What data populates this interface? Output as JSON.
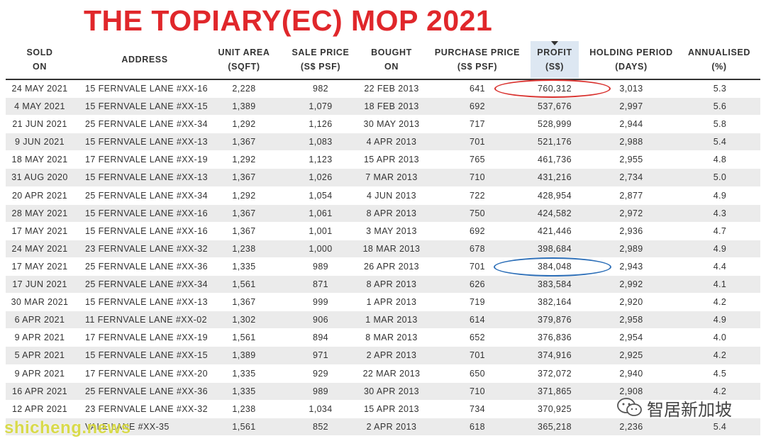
{
  "title": "THE TOPIARY(EC) MOP 2021",
  "columns": [
    {
      "label": "SOLD\nON"
    },
    {
      "label": "ADDRESS"
    },
    {
      "label": "UNIT AREA\n(SQFT)"
    },
    {
      "label": "SALE PRICE\n(S$ PSF)"
    },
    {
      "label": "BOUGHT\nON"
    },
    {
      "label": "PURCHASE PRICE\n(S$ PSF)"
    },
    {
      "label": "PROFIT\n(S$)"
    },
    {
      "label": "HOLDING PERIOD\n(DAYS)"
    },
    {
      "label": "ANNUALISED\n(%)"
    }
  ],
  "sorted_column": "PROFIT",
  "rows": [
    [
      "24 MAY 2021",
      "15 FERNVALE LANE #XX-16",
      "2,228",
      "982",
      "22 FEB 2013",
      "641",
      "760,312",
      "3,013",
      "5.3"
    ],
    [
      "4 MAY 2021",
      "15 FERNVALE LANE #XX-15",
      "1,389",
      "1,079",
      "18 FEB 2013",
      "692",
      "537,676",
      "2,997",
      "5.6"
    ],
    [
      "21 JUN 2021",
      "25 FERNVALE LANE #XX-34",
      "1,292",
      "1,126",
      "30 MAY 2013",
      "717",
      "528,999",
      "2,944",
      "5.8"
    ],
    [
      "9 JUN 2021",
      "15 FERNVALE LANE #XX-13",
      "1,367",
      "1,083",
      "4 APR 2013",
      "701",
      "521,176",
      "2,988",
      "5.4"
    ],
    [
      "18 MAY 2021",
      "17 FERNVALE LANE #XX-19",
      "1,292",
      "1,123",
      "15 APR 2013",
      "765",
      "461,736",
      "2,955",
      "4.8"
    ],
    [
      "31 AUG 2020",
      "15 FERNVALE LANE #XX-13",
      "1,367",
      "1,026",
      "7 MAR 2013",
      "710",
      "431,216",
      "2,734",
      "5.0"
    ],
    [
      "20 APR 2021",
      "25 FERNVALE LANE #XX-34",
      "1,292",
      "1,054",
      "4 JUN 2013",
      "722",
      "428,954",
      "2,877",
      "4.9"
    ],
    [
      "28 MAY 2021",
      "15 FERNVALE LANE #XX-16",
      "1,367",
      "1,061",
      "8 APR 2013",
      "750",
      "424,582",
      "2,972",
      "4.3"
    ],
    [
      "17 MAY 2021",
      "15 FERNVALE LANE #XX-16",
      "1,367",
      "1,001",
      "3 MAY 2013",
      "692",
      "421,446",
      "2,936",
      "4.7"
    ],
    [
      "24 MAY 2021",
      "23 FERNVALE LANE #XX-32",
      "1,238",
      "1,000",
      "18 MAR 2013",
      "678",
      "398,684",
      "2,989",
      "4.9"
    ],
    [
      "17 MAY 2021",
      "25 FERNVALE LANE #XX-36",
      "1,335",
      "989",
      "26 APR 2013",
      "701",
      "384,048",
      "2,943",
      "4.4"
    ],
    [
      "17 JUN 2021",
      "25 FERNVALE LANE #XX-34",
      "1,561",
      "871",
      "8 APR 2013",
      "626",
      "383,584",
      "2,992",
      "4.1"
    ],
    [
      "30 MAR 2021",
      "15 FERNVALE LANE #XX-13",
      "1,367",
      "999",
      "1 APR 2013",
      "719",
      "382,164",
      "2,920",
      "4.2"
    ],
    [
      "6 APR 2021",
      "11 FERNVALE LANE #XX-02",
      "1,302",
      "906",
      "1 MAR 2013",
      "614",
      "379,876",
      "2,958",
      "4.9"
    ],
    [
      "9 APR 2021",
      "17 FERNVALE LANE #XX-19",
      "1,561",
      "894",
      "8 MAR 2013",
      "652",
      "376,836",
      "2,954",
      "4.0"
    ],
    [
      "5 APR 2021",
      "15 FERNVALE LANE #XX-15",
      "1,389",
      "971",
      "2 APR 2013",
      "701",
      "374,916",
      "2,925",
      "4.2"
    ],
    [
      "9 APR 2021",
      "17 FERNVALE LANE #XX-20",
      "1,335",
      "929",
      "22 MAR 2013",
      "650",
      "372,072",
      "2,940",
      "4.5"
    ],
    [
      "16 APR 2021",
      "25 FERNVALE LANE #XX-36",
      "1,335",
      "989",
      "30 APR 2013",
      "710",
      "371,865",
      "2,908",
      "4.2"
    ],
    [
      "12 APR 2021",
      "23 FERNVALE LANE #XX-32",
      "1,238",
      "1,034",
      "15 APR 2013",
      "734",
      "370,925",
      "",
      ""
    ],
    [
      "",
      "VALE LANE #XX-35",
      "1,561",
      "852",
      "2 APR 2013",
      "618",
      "365,218",
      "2,236",
      "5.4"
    ]
  ],
  "highlights": {
    "red_circled_profit": "760,312",
    "blue_circled_profit": "384,048",
    "red_color": "#d9312e",
    "blue_color": "#2d6fb8"
  },
  "watermarks": {
    "left": "shicheng.news",
    "right": "智居新加坡",
    "right_icon": "wechat-icon"
  },
  "colors": {
    "title": "#e0272b",
    "row_stripe": "#ebebeb",
    "sorted_header_bg": "#dde7f2"
  }
}
